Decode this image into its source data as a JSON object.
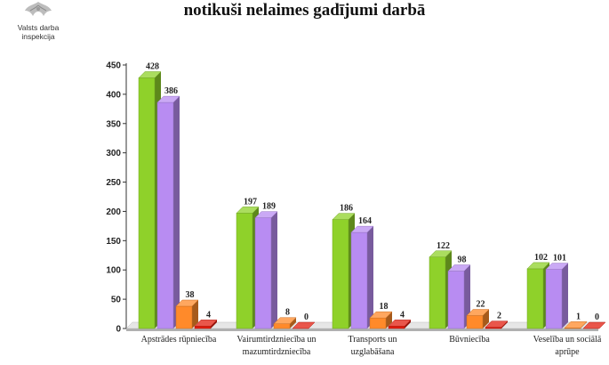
{
  "header": {
    "logo_text": "Valsts darba inspekcija",
    "title": "notikuši nelaimes gadījumi darbā"
  },
  "chart_data": {
    "type": "bar",
    "title": "notikuši nelaimes gadījumi darbā",
    "xlabel": "",
    "ylabel": "",
    "ylim": [
      0,
      450
    ],
    "yticks": [
      0,
      50,
      100,
      150,
      200,
      250,
      300,
      350,
      400,
      450
    ],
    "grid": false,
    "legend": "none",
    "categories": [
      [
        "Apstrādes rūpniecība"
      ],
      [
        "Vairumtirdzniecība un",
        "mazumtirdzniecība"
      ],
      [
        "Transports un",
        "uzglabāšana"
      ],
      [
        "Būvniecība"
      ],
      [
        "Veselība un sociālā",
        "aprūpe"
      ]
    ],
    "series": [
      {
        "color": "#8fd12a",
        "values": [
          428,
          197,
          186,
          122,
          102
        ]
      },
      {
        "color": "#b88cf2",
        "values": [
          386,
          189,
          164,
          98,
          101
        ]
      },
      {
        "color": "#ff8a2a",
        "values": [
          38,
          8,
          18,
          22,
          1
        ]
      },
      {
        "color": "#e11d0f",
        "values": [
          4,
          0,
          4,
          2,
          0
        ]
      }
    ]
  }
}
